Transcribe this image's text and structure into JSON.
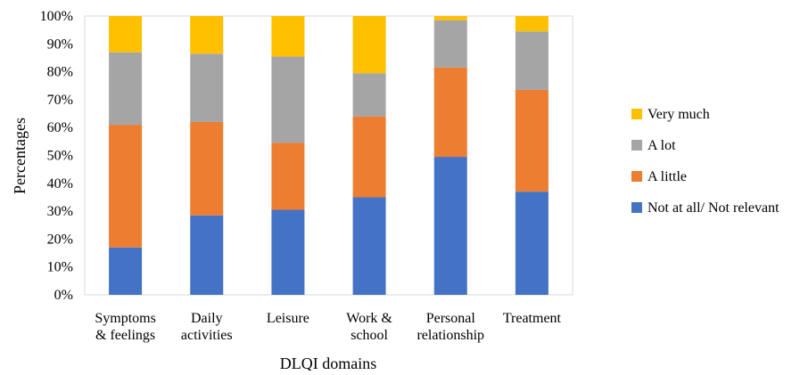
{
  "chart_data": {
    "type": "bar",
    "stacked": true,
    "normalized": true,
    "title": "",
    "xlabel": "DLQI domains",
    "ylabel": "Percentages",
    "ylim": [
      0,
      100
    ],
    "yticks": [
      "0%",
      "10%",
      "20%",
      "30%",
      "40%",
      "50%",
      "60%",
      "70%",
      "80%",
      "90%",
      "100%"
    ],
    "grid": false,
    "legend_position": "right",
    "categories": [
      [
        "Symptoms",
        "& feelings"
      ],
      [
        "Daily",
        "activities"
      ],
      [
        "Leisure"
      ],
      [
        "Work &",
        "school"
      ],
      [
        "Personal",
        "relationship"
      ],
      [
        "Treatment"
      ]
    ],
    "series": [
      {
        "name": "Not at all/ Not relevant",
        "color": "#4472C4",
        "values": [
          17,
          28.5,
          30.5,
          35,
          49.5,
          37
        ]
      },
      {
        "name": "A little",
        "color": "#ED7D31",
        "values": [
          44,
          33.5,
          24,
          29,
          32,
          36.5
        ]
      },
      {
        "name": "A lot",
        "color": "#A5A5A5",
        "values": [
          26,
          24.5,
          31,
          15.5,
          17,
          21
        ]
      },
      {
        "name": "Very much",
        "color": "#FFC000",
        "values": [
          13,
          13.5,
          14.5,
          20.5,
          1.5,
          5.5
        ]
      }
    ]
  }
}
